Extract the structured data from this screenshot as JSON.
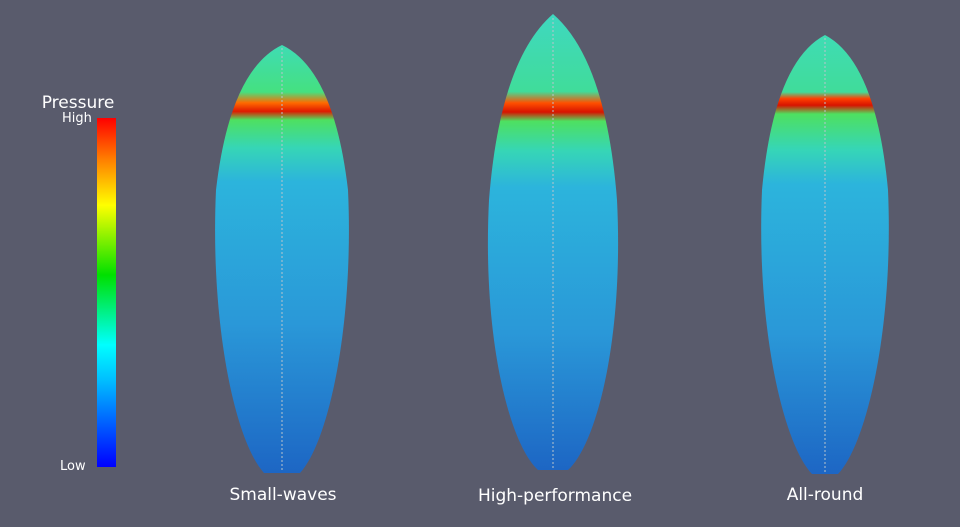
{
  "legend": {
    "title": "Pressure",
    "high": "High",
    "low": "Low"
  },
  "boards": [
    {
      "label": "Small-waves"
    },
    {
      "label": "High-performance"
    },
    {
      "label": "All-round"
    }
  ]
}
